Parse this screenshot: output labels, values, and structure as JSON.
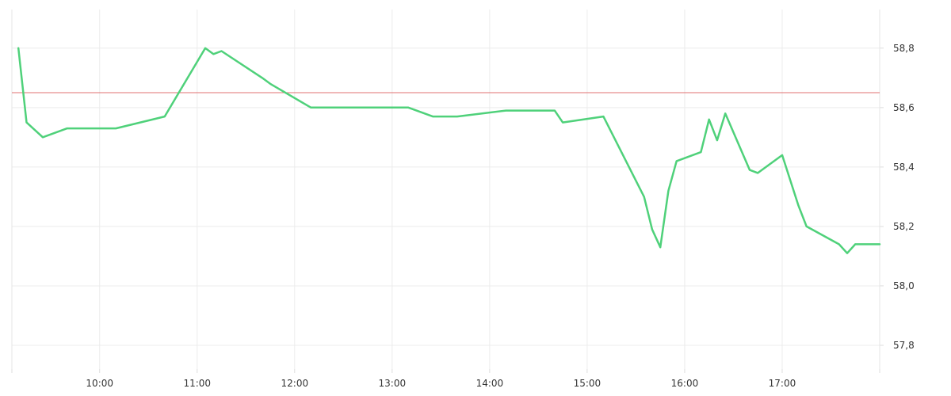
{
  "chart_data": {
    "type": "line",
    "title": "",
    "xlabel": "",
    "ylabel": "",
    "xlim": [
      "09:06",
      "18:00"
    ],
    "ylim": [
      57.72,
      58.93
    ],
    "grid": true,
    "x_ticks": [
      "10:00",
      "11:00",
      "12:00",
      "13:00",
      "14:00",
      "15:00",
      "16:00",
      "17:00"
    ],
    "y_ticks": [
      {
        "value": 58.8,
        "label": "58,8"
      },
      {
        "value": 58.6,
        "label": "58,6"
      },
      {
        "value": 58.4,
        "label": "58,4"
      },
      {
        "value": 58.2,
        "label": "58,2"
      },
      {
        "value": 58.0,
        "label": "58,0"
      },
      {
        "value": 57.8,
        "label": "57,8"
      }
    ],
    "reference_line": {
      "value": 58.65,
      "color": "#e07070"
    },
    "series": [
      {
        "color": "#4fd17a",
        "x": [
          "09:10",
          "09:15",
          "09:25",
          "09:40",
          "10:10",
          "10:40",
          "11:05",
          "11:10",
          "11:15",
          "11:40",
          "11:45",
          "12:10",
          "12:35",
          "13:10",
          "13:25",
          "13:40",
          "14:10",
          "14:40",
          "14:45",
          "15:10",
          "15:35",
          "15:40",
          "15:45",
          "15:50",
          "15:55",
          "16:10",
          "16:15",
          "16:20",
          "16:25",
          "16:40",
          "16:45",
          "17:00",
          "17:10",
          "17:15",
          "17:35",
          "17:40",
          "17:45",
          "18:00"
        ],
        "values": [
          58.8,
          58.55,
          58.5,
          58.53,
          58.53,
          58.57,
          58.8,
          58.78,
          58.79,
          58.7,
          58.68,
          58.6,
          58.6,
          58.6,
          58.57,
          58.57,
          58.59,
          58.59,
          58.55,
          58.57,
          58.3,
          58.19,
          58.13,
          58.32,
          58.42,
          58.45,
          58.56,
          58.49,
          58.58,
          58.39,
          58.38,
          58.44,
          58.27,
          58.2,
          58.14,
          58.11,
          58.14,
          58.14
        ]
      }
    ]
  }
}
